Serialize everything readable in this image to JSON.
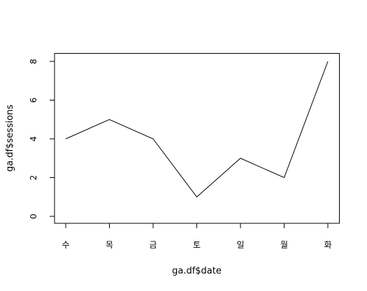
{
  "chart_data": {
    "type": "line",
    "title": "",
    "xlabel": "ga.df$date",
    "ylabel": "ga.df$sessions",
    "categories": [
      "수",
      "목",
      "금",
      "토",
      "일",
      "월",
      "화"
    ],
    "series": [
      {
        "values": [
          4,
          5,
          4,
          1,
          3,
          2,
          8
        ]
      }
    ],
    "ylim": [
      0,
      8
    ],
    "yticks": [
      0,
      2,
      4,
      6,
      8
    ],
    "ytick_labels": [
      "0",
      "2",
      "4",
      "6",
      "8"
    ],
    "grid": false,
    "legend": "none",
    "line_color": "#000000",
    "axis_color": "#000000",
    "background": "#ffffff"
  }
}
